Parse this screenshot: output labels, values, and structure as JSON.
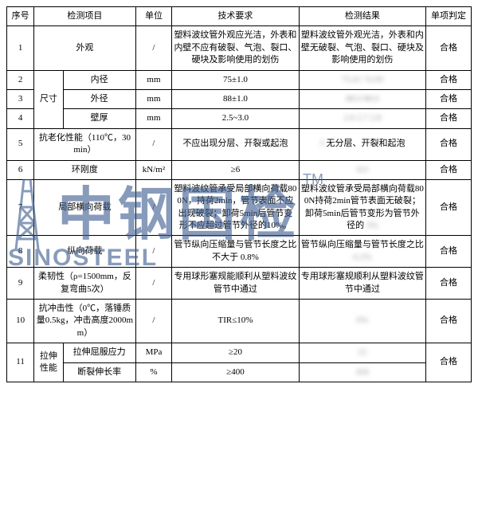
{
  "headers": {
    "seq": "序号",
    "item": "检测项目",
    "unit": "单位",
    "tech": "技术要求",
    "result": "检测结果",
    "verdict": "单项判定"
  },
  "rows": [
    {
      "seq": "1",
      "item_span": false,
      "item_a": "",
      "item": "外观",
      "unit": "/",
      "tech": "塑料波纹管外观应光洁，外表和内壁不应有破裂、气泡、裂口、硬块及影响使用的划伤",
      "result": "塑料波纹管外观光洁，外表和内壁无破裂、气泡、裂口、硬块及影响使用的划伤",
      "verdict": "合格",
      "item_colspan": 2
    },
    {
      "seq": "2",
      "item_a": "尺寸",
      "item_a_rowspan": 3,
      "item": "内径",
      "unit": "mm",
      "tech": "75±1.0",
      "result_blur": true,
      "result": "75.01 74.99",
      "verdict": "合格"
    },
    {
      "seq": "3",
      "item": "外径",
      "unit": "mm",
      "tech": "88±1.0",
      "result_blur": true,
      "result": "88.0 88.0",
      "verdict": "合格"
    },
    {
      "seq": "4",
      "item": "壁厚",
      "unit": "mm",
      "tech": "2.5~3.0",
      "result_blur": true,
      "result": "2.6 2.7 2.8",
      "verdict": "合格"
    },
    {
      "seq": "5",
      "item": "抗老化性能（110℃，30min）",
      "item_colspan": 2,
      "unit": "/",
      "tech": "不应出现分层、开裂或起泡",
      "result": "无分层、开裂和起泡",
      "result_prefix_blur": "3",
      "verdict": "合格"
    },
    {
      "seq": "6",
      "item": "环刚度",
      "item_colspan": 2,
      "unit": "kN/m²",
      "tech": "≥6",
      "result_blur": true,
      "result": "8.0",
      "verdict": "合格"
    },
    {
      "seq": "7",
      "item": "局部横向荷载",
      "item_colspan": 2,
      "unit": "/",
      "tech": "塑料波纹管承受局部横向荷载800N，持荷2min，管节表面不应出现破裂；卸荷5min后管节变形不应超过管节外径的10%。",
      "result": "塑料波纹管承受局部横向荷载800N持荷2min管节表面无破裂；卸荷5min后管节变形为管节外径的",
      "result_suffix_blur": "3%",
      "verdict": "合格"
    },
    {
      "seq": "8",
      "item": "纵向荷载",
      "item_colspan": 2,
      "unit": "/",
      "tech": "管节纵向压缩量与管节长度之比不大于 0.8%",
      "result": "管节纵向压缩量与管节长度之比",
      "result_suffix_blur": "0.2%",
      "verdict": "合格"
    },
    {
      "seq": "9",
      "item": "柔韧性（ρ=1500mm，反复弯曲5次）",
      "item_colspan": 2,
      "unit": "/",
      "tech": "专用球形塞规能顺利从塑料波纹管节中通过",
      "result": "专用球形塞规顺利从塑料波纹管节中通过",
      "verdict": "合格"
    },
    {
      "seq": "10",
      "item": "抗冲击性（0℃，落锤质量0.5kg，冲击高度2000mm）",
      "item_colspan": 2,
      "unit": "/",
      "tech": "TIR≤10%",
      "result_blur": true,
      "result": "0%",
      "verdict": "合格"
    },
    {
      "seq": "11",
      "seq_rowspan": 2,
      "item_a": "拉伸性能",
      "item_a_rowspan": 2,
      "item": "拉伸屈服应力",
      "unit": "MPa",
      "tech": "≥20",
      "result_blur": true,
      "result": "22",
      "verdict": "合格",
      "verdict_rowspan": 2
    },
    {
      "item": "断裂伸长率",
      "unit": "%",
      "tech": "≥400",
      "result_blur": true,
      "result": "450"
    }
  ],
  "watermark": {
    "chinese": "中钢国检",
    "english": "SINOSTEEL",
    "tm": "TM"
  },
  "colors": {
    "border": "#000000",
    "watermark": "#3a5a8f",
    "blur": "#999999",
    "bg": "#ffffff"
  }
}
